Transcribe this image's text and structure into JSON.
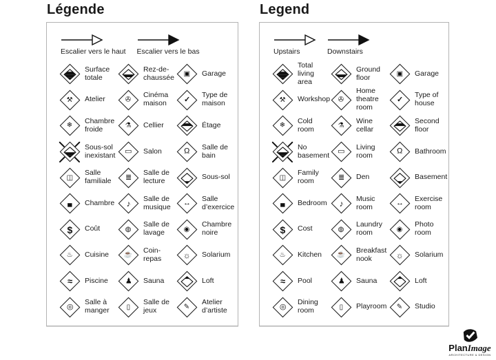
{
  "panels": [
    {
      "id": "french",
      "title": "Légende",
      "arrows": [
        {
          "label": "Escalier vers le haut",
          "style": "outline"
        },
        {
          "label": "Escalier vers le bas",
          "style": "filled"
        }
      ],
      "items": [
        {
          "icon": "floor-stack-all-icon",
          "label": "Surface totale"
        },
        {
          "icon": "floor-stack-ground-icon",
          "label": "Rez-de-chaussée"
        },
        {
          "icon": "garage-car-icon",
          "label": "Garage"
        },
        {
          "icon": "hammer-icon",
          "label": "Atelier"
        },
        {
          "icon": "projector-icon",
          "label": "Cinéma maison"
        },
        {
          "icon": "house-check-icon",
          "label": "Type de maison"
        },
        {
          "icon": "thermometer-icon",
          "label": "Chambre froide"
        },
        {
          "icon": "wine-bottle-icon",
          "label": "Cellier"
        },
        {
          "icon": "floor-stack-second-icon",
          "label": "Étage"
        },
        {
          "icon": "no-basement-icon",
          "label": "Sous-sol inexistant"
        },
        {
          "icon": "sofa-icon",
          "label": "Salon"
        },
        {
          "icon": "toilet-icon",
          "label": "Salle de bain"
        },
        {
          "icon": "television-icon",
          "label": "Salle familiale"
        },
        {
          "icon": "open-book-icon",
          "label": "Salle de lecture"
        },
        {
          "icon": "floor-stack-basement-icon",
          "label": "Sous-sol"
        },
        {
          "icon": "bed-icon",
          "label": "Chambre"
        },
        {
          "icon": "music-note-icon",
          "label": "Salle de musique"
        },
        {
          "icon": "exercise-arrows-icon",
          "label": "Salle d’exercice"
        },
        {
          "icon": "dollar-icon",
          "label": "Coût"
        },
        {
          "icon": "laundry-basket-icon",
          "label": "Salle de lavage"
        },
        {
          "icon": "camera-icon",
          "label": "Chambre noire"
        },
        {
          "icon": "cooking-pot-icon",
          "label": "Cuisine"
        },
        {
          "icon": "coffee-cup-icon",
          "label": "Coin-repas"
        },
        {
          "icon": "sun-icon",
          "label": "Solarium"
        },
        {
          "icon": "swimmer-icon",
          "label": "Piscine"
        },
        {
          "icon": "sauna-person-icon",
          "label": "Sauna"
        },
        {
          "icon": "floor-stack-loft-icon",
          "label": "Loft"
        },
        {
          "icon": "dinner-plate-icon",
          "label": "Salle à manger"
        },
        {
          "icon": "playroom-door-icon",
          "label": "Salle de jeux"
        },
        {
          "icon": "artist-palette-icon",
          "label": "Atelier d’artiste"
        }
      ]
    },
    {
      "id": "english",
      "title": "Legend",
      "arrows": [
        {
          "label": "Upstairs",
          "style": "outline"
        },
        {
          "label": "Downstairs",
          "style": "filled"
        }
      ],
      "items": [
        {
          "icon": "floor-stack-all-icon",
          "label": "Total living area"
        },
        {
          "icon": "floor-stack-ground-icon",
          "label": "Ground floor"
        },
        {
          "icon": "garage-car-icon",
          "label": "Garage"
        },
        {
          "icon": "hammer-icon",
          "label": "Workshop"
        },
        {
          "icon": "projector-icon",
          "label": "Home theatre room"
        },
        {
          "icon": "house-check-icon",
          "label": "Type of house"
        },
        {
          "icon": "thermometer-icon",
          "label": "Cold room"
        },
        {
          "icon": "wine-bottle-icon",
          "label": "Wine cellar"
        },
        {
          "icon": "floor-stack-second-icon",
          "label": "Second floor"
        },
        {
          "icon": "no-basement-icon",
          "label": "No basement"
        },
        {
          "icon": "sofa-icon",
          "label": "Living room"
        },
        {
          "icon": "toilet-icon",
          "label": "Bathroom"
        },
        {
          "icon": "television-icon",
          "label": "Family room"
        },
        {
          "icon": "open-book-icon",
          "label": "Den"
        },
        {
          "icon": "floor-stack-basement-icon",
          "label": "Basement"
        },
        {
          "icon": "bed-icon",
          "label": "Bedroom"
        },
        {
          "icon": "music-note-icon",
          "label": "Music room"
        },
        {
          "icon": "exercise-arrows-icon",
          "label": "Exercise room"
        },
        {
          "icon": "dollar-icon",
          "label": "Cost"
        },
        {
          "icon": "laundry-basket-icon",
          "label": "Laundry room"
        },
        {
          "icon": "camera-icon",
          "label": "Photo room"
        },
        {
          "icon": "cooking-pot-icon",
          "label": "Kitchen"
        },
        {
          "icon": "coffee-cup-icon",
          "label": "Breakfast nook"
        },
        {
          "icon": "sun-icon",
          "label": "Solarium"
        },
        {
          "icon": "swimmer-icon",
          "label": "Pool"
        },
        {
          "icon": "sauna-person-icon",
          "label": "Sauna"
        },
        {
          "icon": "floor-stack-loft-icon",
          "label": "Loft"
        },
        {
          "icon": "dinner-plate-icon",
          "label": "Dining room"
        },
        {
          "icon": "playroom-door-icon",
          "label": "Playroom"
        },
        {
          "icon": "artist-palette-icon",
          "label": "Studio"
        }
      ]
    }
  ],
  "icon_glyphs": {
    "garage-car-icon": {
      "ch": "▣",
      "fs": 10
    },
    "hammer-icon": {
      "ch": "⚒",
      "fs": 10
    },
    "projector-icon": {
      "ch": "✇",
      "fs": 10
    },
    "house-check-icon": {
      "ch": "✓",
      "fs": 11,
      "fw": 700
    },
    "thermometer-icon": {
      "ch": "❄",
      "fs": 10
    },
    "wine-bottle-icon": {
      "ch": "⚗",
      "fs": 10
    },
    "sofa-icon": {
      "ch": "▭",
      "fs": 11
    },
    "toilet-icon": {
      "ch": "Ω",
      "fs": 11
    },
    "television-icon": {
      "ch": "◫",
      "fs": 10
    },
    "open-book-icon": {
      "ch": "≣",
      "fs": 11
    },
    "bed-icon": {
      "ch": "▄",
      "fs": 9
    },
    "music-note-icon": {
      "ch": "♪",
      "fs": 12
    },
    "exercise-arrows-icon": {
      "ch": "↔",
      "fs": 11,
      "fw": 700
    },
    "dollar-icon": {
      "ch": "$",
      "fs": 14,
      "fw": 700
    },
    "laundry-basket-icon": {
      "ch": "◍",
      "fs": 10
    },
    "camera-icon": {
      "ch": "◉",
      "fs": 10
    },
    "cooking-pot-icon": {
      "ch": "♨",
      "fs": 10
    },
    "coffee-cup-icon": {
      "ch": "☕",
      "fs": 10
    },
    "sun-icon": {
      "ch": "☼",
      "fs": 12
    },
    "swimmer-icon": {
      "ch": "≈",
      "fs": 13,
      "fw": 700
    },
    "sauna-person-icon": {
      "ch": "♟",
      "fs": 11
    },
    "dinner-plate-icon": {
      "ch": "◎",
      "fs": 11
    },
    "playroom-door-icon": {
      "ch": "▯",
      "fs": 10
    },
    "artist-palette-icon": {
      "ch": "✎",
      "fs": 10
    }
  },
  "floor_stacks": {
    "floor-stack-all-icon": {
      "fills": [
        0,
        1,
        1,
        1
      ]
    },
    "floor-stack-ground-icon": {
      "fills": [
        0,
        0,
        1,
        0
      ]
    },
    "floor-stack-second-icon": {
      "fills": [
        0,
        1,
        0,
        0
      ]
    },
    "floor-stack-basement-icon": {
      "fills": [
        0,
        0,
        0,
        1
      ]
    },
    "floor-stack-loft-icon": {
      "fills": [
        1,
        0,
        0,
        0
      ]
    },
    "no-basement-icon": {
      "fills": [
        0,
        0,
        1,
        1
      ],
      "cross": true
    }
  },
  "colors": {
    "ink": "#1a1a1a",
    "panel_border": "#b3b3b3"
  },
  "logo": {
    "brand_bold": "Plan",
    "brand_italic": "Image",
    "tagline": "ARCHITECTURE & DESIGN"
  }
}
